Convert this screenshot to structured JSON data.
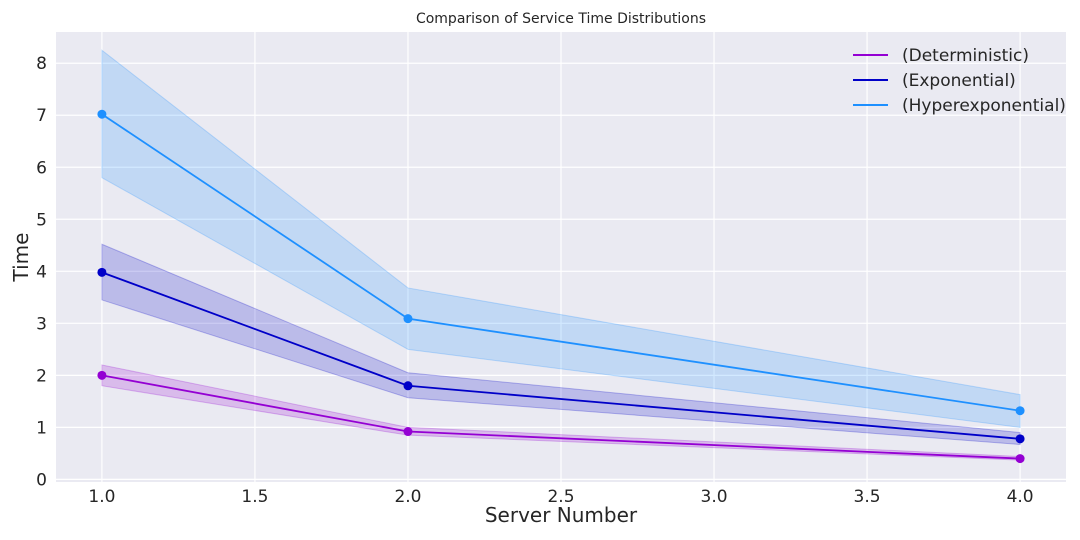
{
  "chart_data": {
    "type": "line",
    "title": "Comparison of Service Time Distributions",
    "xlabel": "Server Number",
    "ylabel": "Time",
    "x": [
      1,
      2,
      4
    ],
    "xlim": [
      0.85,
      4.15
    ],
    "ylim": [
      -0.05,
      8.6
    ],
    "xticks": [
      1.0,
      1.5,
      2.0,
      2.5,
      3.0,
      3.5,
      4.0
    ],
    "xtick_labels": [
      "1.0",
      "1.5",
      "2.0",
      "2.5",
      "3.0",
      "3.5",
      "4.0"
    ],
    "yticks": [
      0,
      1,
      2,
      3,
      4,
      5,
      6,
      7,
      8
    ],
    "ytick_labels": [
      "0",
      "1",
      "2",
      "3",
      "4",
      "5",
      "6",
      "7",
      "8"
    ],
    "grid": true,
    "legend_position": "top-right",
    "series": [
      {
        "name": "(Deterministic)",
        "color": "#9400d3",
        "values": [
          2.0,
          0.92,
          0.4
        ],
        "lower": [
          1.8,
          0.85,
          0.37
        ],
        "upper": [
          2.2,
          1.0,
          0.44
        ]
      },
      {
        "name": "(Exponential)",
        "color": "#0000c8",
        "values": [
          3.98,
          1.8,
          0.78
        ],
        "lower": [
          3.45,
          1.57,
          0.67
        ],
        "upper": [
          4.52,
          2.05,
          0.9
        ]
      },
      {
        "name": "(Hyperexponential)",
        "color": "#1e90ff",
        "values": [
          7.02,
          3.09,
          1.32
        ],
        "lower": [
          5.8,
          2.5,
          1.0
        ],
        "upper": [
          8.25,
          3.68,
          1.63
        ]
      }
    ]
  }
}
